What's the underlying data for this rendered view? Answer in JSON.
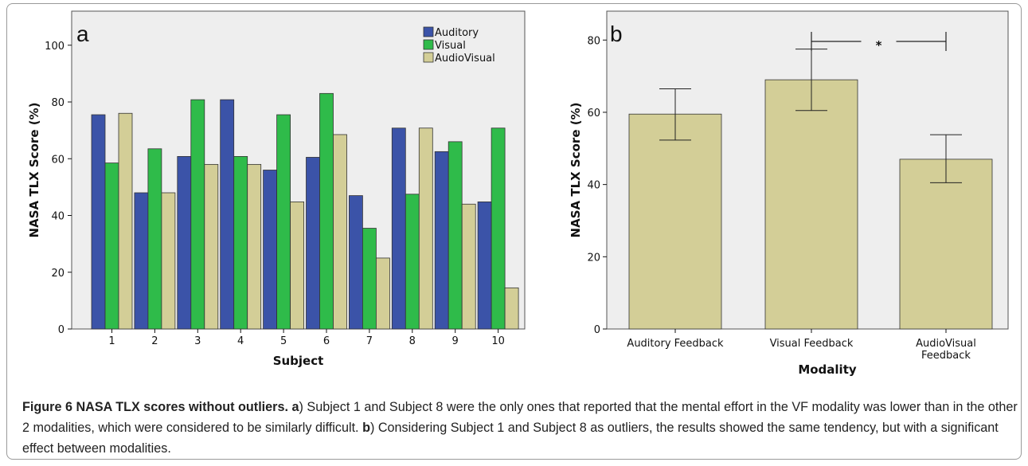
{
  "colors": {
    "auditory": "#3b53a8",
    "visual": "#2fbb4a",
    "audiovisual": "#d3ce97",
    "plot_bg": "#eeeeee",
    "bar_stroke": "#333333"
  },
  "chart_data": [
    {
      "type": "bar",
      "panel_label": "a",
      "xlabel": "Subject",
      "ylabel": "NASA TLX Score (%)",
      "ylim": [
        0,
        112
      ],
      "yticks": [
        0,
        20,
        40,
        60,
        80,
        100
      ],
      "grid": false,
      "legend_position": "top-right",
      "categories": [
        "1",
        "2",
        "3",
        "4",
        "5",
        "6",
        "7",
        "8",
        "9",
        "10"
      ],
      "series": [
        {
          "name": "Auditory",
          "color": "#3b53a8",
          "values": [
            75.5,
            48,
            60.8,
            80.8,
            56,
            60.5,
            47,
            70.8,
            62.5,
            44.8
          ]
        },
        {
          "name": "Visual",
          "color": "#2fbb4a",
          "values": [
            58.5,
            63.5,
            80.8,
            60.8,
            75.5,
            83,
            35.5,
            47.5,
            66,
            70.8
          ]
        },
        {
          "name": "AudioVisual",
          "color": "#d3ce97",
          "values": [
            76,
            48,
            58,
            58,
            44.8,
            68.5,
            25,
            70.8,
            44,
            14.5
          ]
        }
      ]
    },
    {
      "type": "bar",
      "panel_label": "b",
      "xlabel": "Modality",
      "ylabel": "NASA TLX Score (%)",
      "ylim": [
        0,
        88
      ],
      "yticks": [
        0,
        20,
        40,
        60,
        80
      ],
      "grid": false,
      "categories": [
        "Auditory Feedback",
        "Visual Feedback",
        "AudioVisual Feedback"
      ],
      "values": [
        59.5,
        69,
        47
      ],
      "error_low": [
        52.3,
        60.5,
        40.5
      ],
      "error_high": [
        66.5,
        77.5,
        53.8
      ],
      "significance": {
        "from": 1,
        "to": 2,
        "label": "*"
      }
    }
  ],
  "caption": {
    "title": "Figure 6 NASA TLX scores without outliers.",
    "a_label": "a",
    "a_text": ") Subject 1 and Subject 8 were the only ones that reported that the mental effort in the VF modality was lower than in the other 2 modalities, which were considered to be similarly difficult.",
    "b_label": "b",
    "b_text": ") Considering Subject 1 and Subject 8 as outliers, the results showed the same tendency, but with a significant effect between modalities."
  }
}
